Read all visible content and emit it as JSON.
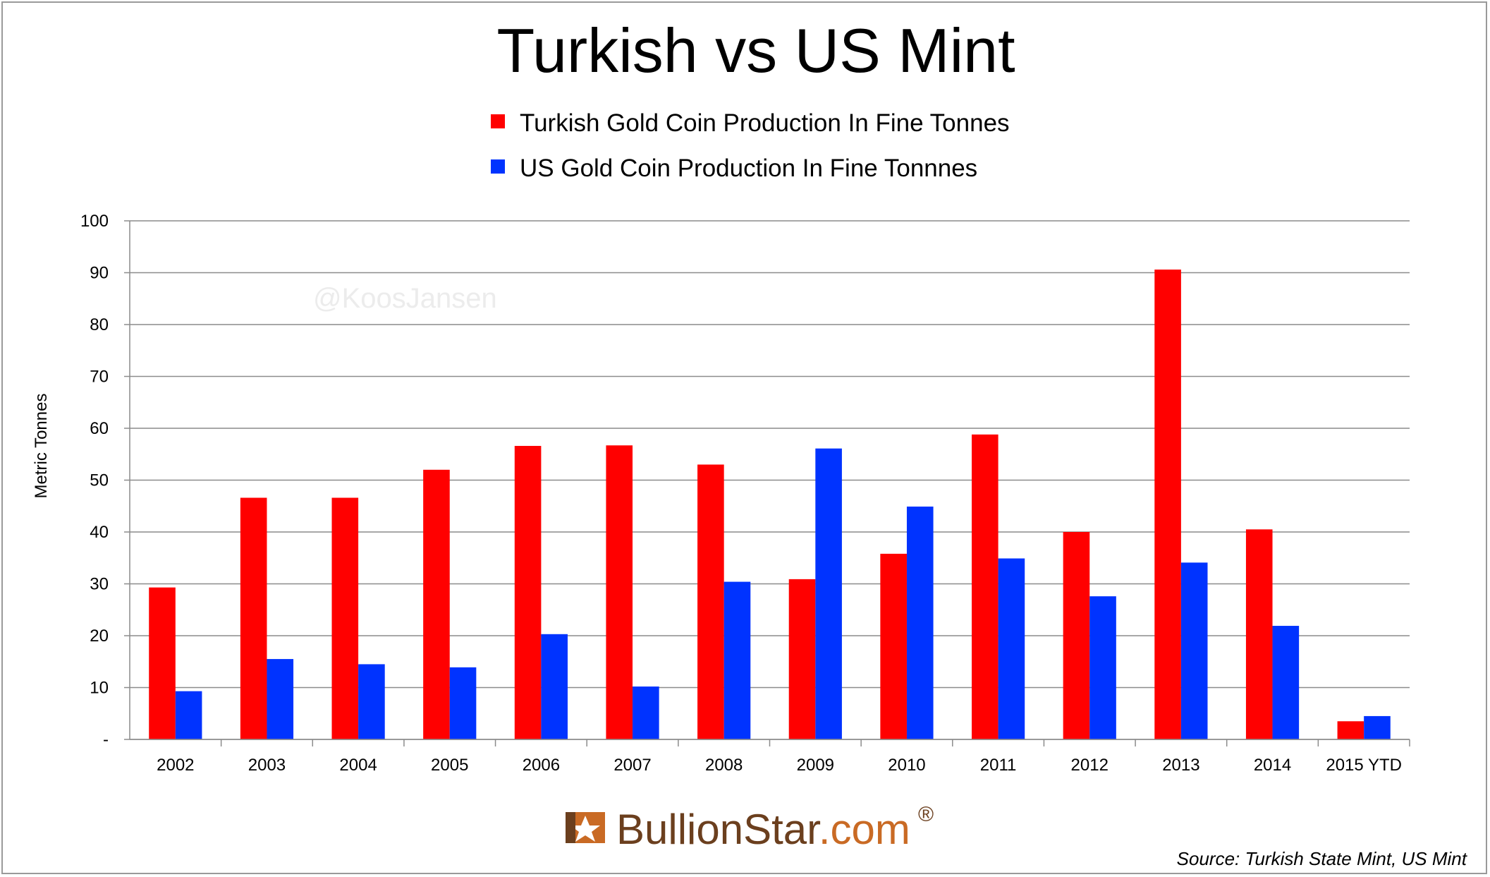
{
  "chart_data": {
    "type": "bar",
    "title": "Turkish vs US Mint",
    "ylabel": "Metric Tonnes",
    "xlabel": "",
    "ylim": [
      0,
      100
    ],
    "yticks": [
      0,
      10,
      20,
      30,
      40,
      50,
      60,
      70,
      80,
      90,
      100
    ],
    "ytick_labels": [
      "-",
      "10",
      "20",
      "30",
      "40",
      "50",
      "60",
      "70",
      "80",
      "90",
      "100"
    ],
    "grid": true,
    "legend_position": "top-center",
    "categories": [
      "2002",
      "2003",
      "2004",
      "2005",
      "2006",
      "2007",
      "2008",
      "2009",
      "2010",
      "2011",
      "2012",
      "2013",
      "2014",
      "2015 YTD"
    ],
    "series": [
      {
        "name": "Turkish Gold Coin Production In Fine Tonnes",
        "color": "#ff0000",
        "values": [
          29.3,
          46.6,
          46.6,
          52.0,
          56.6,
          56.7,
          53.0,
          30.9,
          35.8,
          58.8,
          40.0,
          90.6,
          40.5,
          3.5
        ]
      },
      {
        "name": "US Gold Coin Production In Fine Tonnnes",
        "color": "#0033ff",
        "values": [
          9.3,
          15.5,
          14.5,
          13.9,
          20.3,
          10.2,
          30.4,
          56.1,
          44.9,
          34.9,
          27.6,
          34.1,
          21.9,
          4.5
        ]
      }
    ]
  },
  "watermark": "@KoosJansen",
  "logo": {
    "brand": "BullionStar",
    "domain": ".com",
    "registered": "®"
  },
  "source": "Source: Turkish State Mint, US Mint"
}
